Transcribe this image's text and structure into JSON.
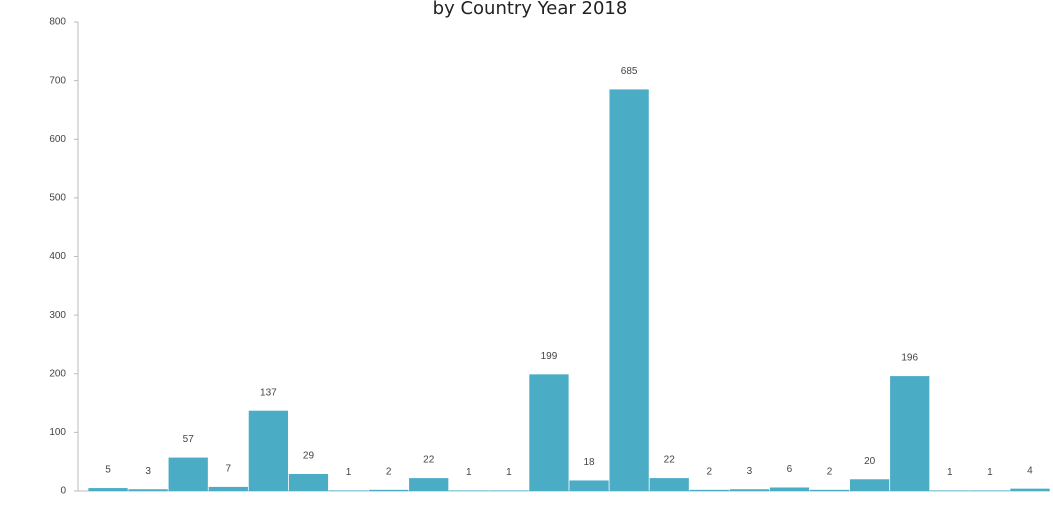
{
  "chart_data": {
    "type": "bar",
    "title": "by Country Year 2018",
    "categories": [
      null,
      null,
      null,
      null,
      null,
      null,
      null,
      null,
      null,
      null,
      null,
      null,
      null,
      null,
      null,
      null,
      null,
      null,
      null,
      null,
      null,
      null,
      null,
      null
    ],
    "values": [
      5,
      3,
      57,
      7,
      137,
      29,
      1,
      2,
      22,
      1,
      1,
      199,
      18,
      685,
      22,
      2,
      3,
      6,
      2,
      20,
      196,
      1,
      1,
      4
    ],
    "color": "#4bacc6",
    "ylim": [
      0,
      800
    ],
    "yticks": [
      0,
      100,
      200,
      300,
      400,
      500,
      600,
      700,
      800
    ],
    "grid": false
  }
}
